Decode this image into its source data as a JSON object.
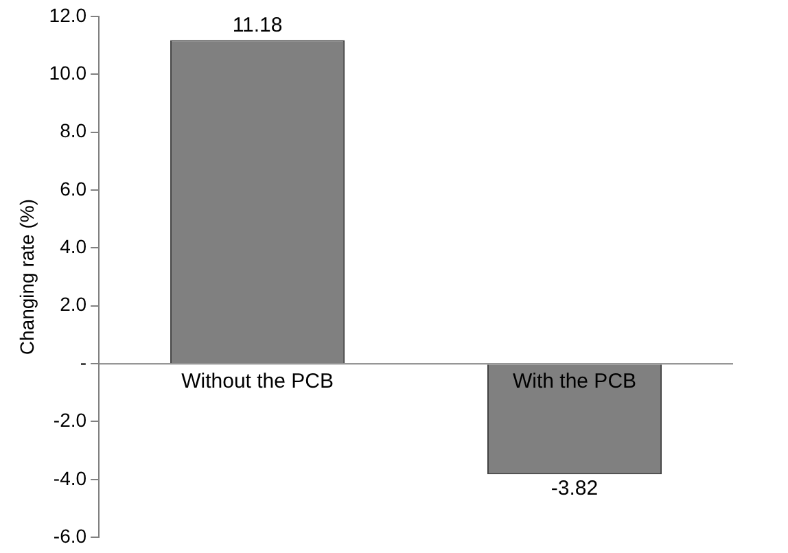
{
  "chart_data": {
    "type": "bar",
    "ylabel": "Changing rate (%)",
    "categories": [
      "Without the PCB",
      "With the PCB"
    ],
    "values": [
      11.18,
      -3.82
    ],
    "color": "#808080",
    "ylim": [
      -6,
      12
    ],
    "yticks": [
      {
        "value": -6,
        "label": "-6.0"
      },
      {
        "value": -4,
        "label": "-4.0"
      },
      {
        "value": -2,
        "label": "-2.0"
      },
      {
        "value": 0,
        "label": "-"
      },
      {
        "value": 2,
        "label": "2.0"
      },
      {
        "value": 4,
        "label": "4.0"
      },
      {
        "value": 6,
        "label": "6.0"
      },
      {
        "value": 8,
        "label": "8.0"
      },
      {
        "value": 10,
        "label": "10.0"
      },
      {
        "value": 12,
        "label": "12.0"
      }
    ],
    "grid": false,
    "legend": false,
    "data_labels": true
  }
}
